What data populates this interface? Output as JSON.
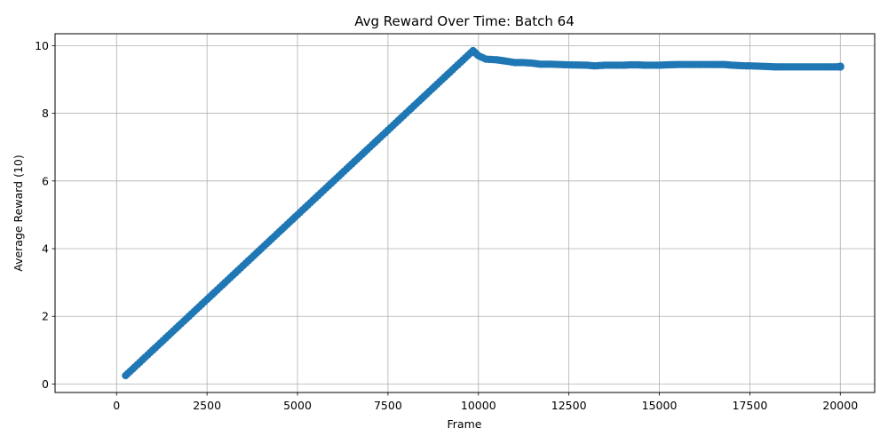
{
  "chart_data": {
    "type": "line",
    "title": "Avg Reward Over Time: Batch 64",
    "xlabel": "Frame",
    "ylabel": "Average Reward (10)",
    "xlim": [
      -1700,
      20950
    ],
    "ylim": [
      -0.25,
      10.35
    ],
    "xticks": [
      0,
      2500,
      5000,
      7500,
      10000,
      12500,
      15000,
      17500,
      20000
    ],
    "yticks": [
      0,
      2,
      4,
      6,
      8,
      10
    ],
    "grid": true,
    "legend": "none",
    "series": [
      {
        "color": "#1f77b4",
        "marker": "circle",
        "x": [
          250,
          500,
          1000,
          1500,
          2000,
          2500,
          3000,
          3500,
          4000,
          4500,
          5000,
          5500,
          6000,
          6500,
          7000,
          7500,
          8000,
          8500,
          9000,
          9500,
          9850,
          10000,
          10200,
          10500,
          10700,
          11000,
          11200,
          11500,
          11700,
          12000,
          12500,
          13000,
          13200,
          13500,
          14000,
          14200,
          14400,
          14600,
          15000,
          15200,
          15500,
          16000,
          16500,
          16800,
          17000,
          17400,
          17500,
          18000,
          18200,
          18500,
          19000,
          19500,
          19900,
          20000
        ],
        "y": [
          0.25,
          0.5,
          1.0,
          1.5,
          2.0,
          2.5,
          3.0,
          3.5,
          4.0,
          4.5,
          5.0,
          5.5,
          6.0,
          6.5,
          7.0,
          7.5,
          8.0,
          8.5,
          9.0,
          9.5,
          9.85,
          9.7,
          9.6,
          9.58,
          9.55,
          9.5,
          9.5,
          9.48,
          9.45,
          9.45,
          9.43,
          9.42,
          9.4,
          9.42,
          9.42,
          9.43,
          9.43,
          9.42,
          9.42,
          9.43,
          9.44,
          9.44,
          9.44,
          9.44,
          9.42,
          9.4,
          9.4,
          9.38,
          9.37,
          9.37,
          9.37,
          9.37,
          9.37,
          9.38
        ]
      }
    ]
  }
}
